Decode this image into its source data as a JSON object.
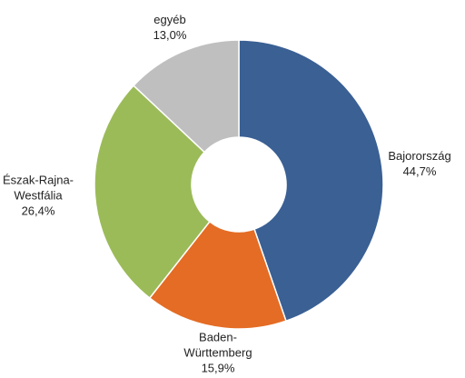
{
  "chart_data": {
    "type": "donut",
    "categories": [
      "Bajorország",
      "Baden-Württemberg",
      "Észak-Rajna-Westfália",
      "egyéb"
    ],
    "values": [
      44.7,
      15.9,
      26.4,
      13.0
    ],
    "value_labels": [
      "44,7%",
      "15,9%",
      "26,4%",
      "13,0%"
    ],
    "colors": [
      "#3a6094",
      "#e46c24",
      "#9bbb59",
      "#bfbfbf"
    ]
  }
}
